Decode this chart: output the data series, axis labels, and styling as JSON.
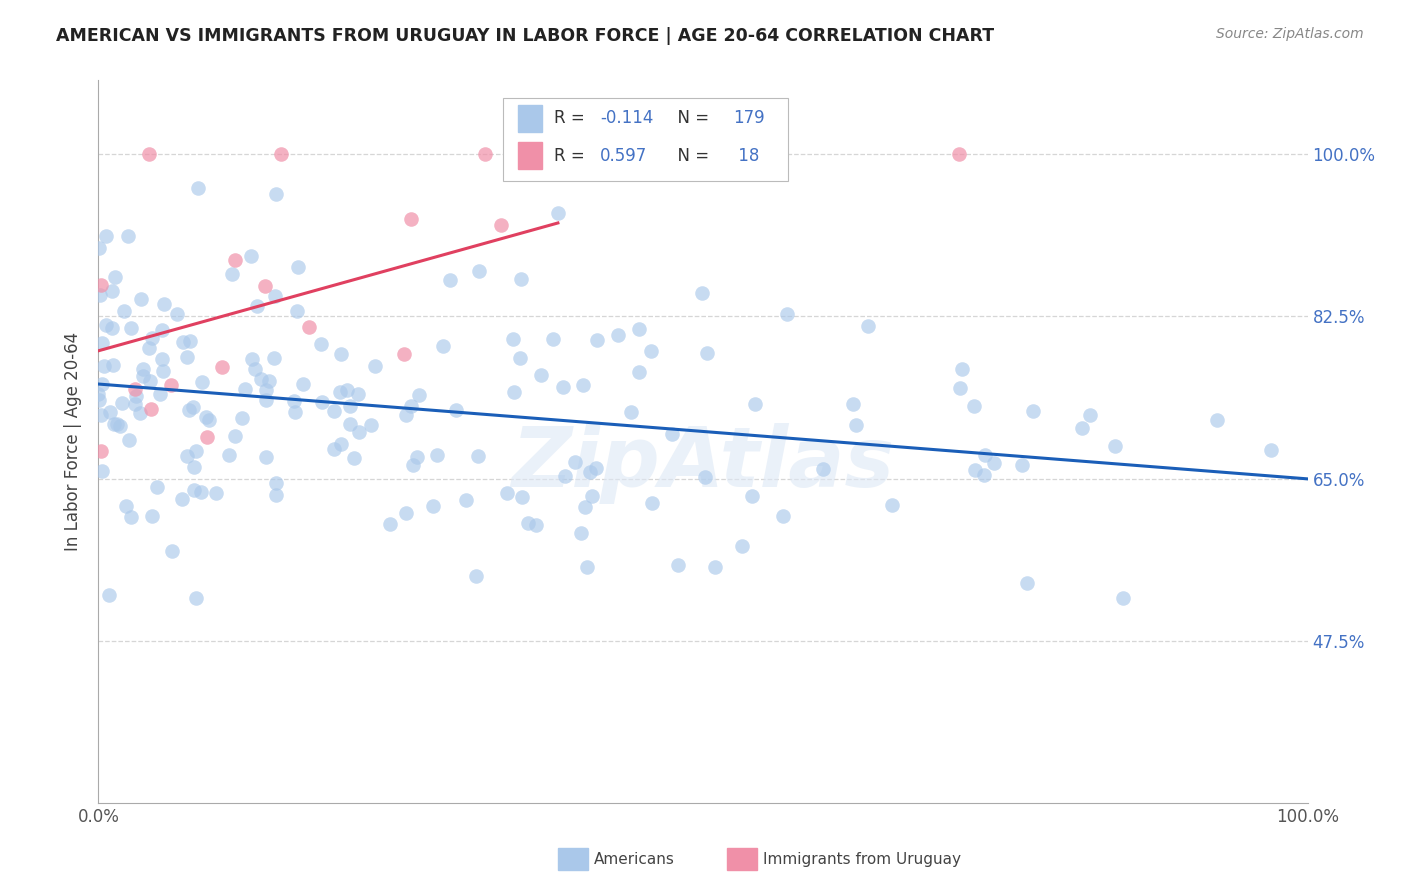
{
  "title": "AMERICAN VS IMMIGRANTS FROM URUGUAY IN LABOR FORCE | AGE 20-64 CORRELATION CHART",
  "source": "Source: ZipAtlas.com",
  "ylabel": "In Labor Force | Age 20-64",
  "xlim": [
    0.0,
    1.0
  ],
  "ylim": [
    0.3,
    1.08
  ],
  "yticks": [
    0.475,
    0.65,
    0.825,
    1.0
  ],
  "ytick_labels": [
    "47.5%",
    "65.0%",
    "82.5%",
    "100.0%"
  ],
  "xtick_labels": [
    "0.0%",
    "100.0%"
  ],
  "xticks": [
    0.0,
    1.0
  ],
  "americans_color": "#aac8ea",
  "uruguay_color": "#f090a8",
  "trend_blue": "#1a5eb8",
  "trend_pink": "#e04060",
  "R_americans": -0.114,
  "N_americans": 179,
  "R_uruguay": 0.597,
  "N_uruguay": 18,
  "background_color": "#ffffff",
  "grid_color": "#cccccc",
  "watermark": "ZipAtlas",
  "legend_label_americans": "Americans",
  "legend_label_uruguay": "Immigrants from Uruguay",
  "seed": 42,
  "blue_trend_x0": 0.0,
  "blue_trend_y0": 0.755,
  "blue_trend_x1": 1.0,
  "blue_trend_y1": 0.645,
  "pink_trend_x0": 0.0,
  "pink_trend_y0": 0.74,
  "pink_trend_x1": 0.35,
  "pink_trend_y1": 1.02
}
